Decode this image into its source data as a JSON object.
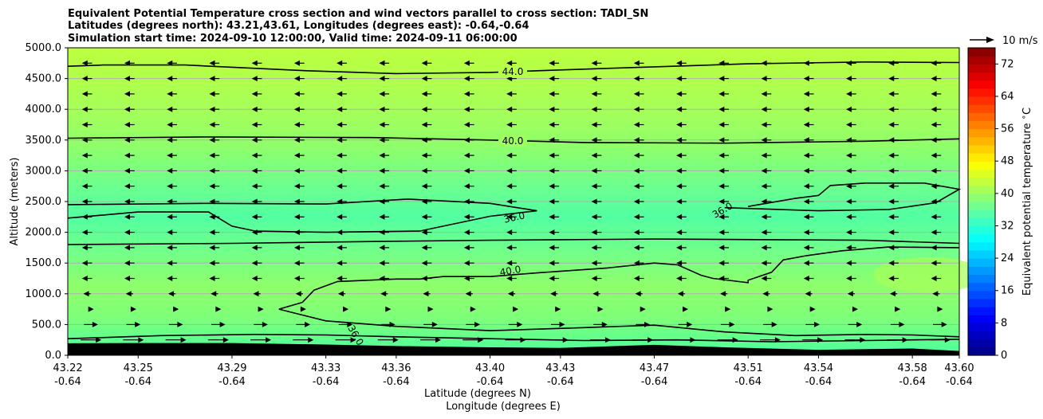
{
  "chart_data": {
    "type": "heatmap",
    "title_lines": [
      "Equivalent Potential Temperature cross section and wind vectors parallel to cross section: TADI_SN",
      "Latitudes (degrees north): 43.21,43.61, Longitudes (degrees east): -0.64,-0.64",
      "Simulation start time: 2024-09-10 12:00:00, Valid time: 2024-09-11 06:00:00"
    ],
    "ylabel": "Altitude (meters)",
    "xlabel_line1": "Latitude (degrees N)",
    "xlabel_line2": "Longitude (degrees E)",
    "ylim": [
      0,
      5000
    ],
    "xlim": [
      43.22,
      43.6
    ],
    "yticks": [
      "0.0",
      "500.0",
      "1000.0",
      "1500.0",
      "2000.0",
      "2500.0",
      "3000.0",
      "3500.0",
      "4000.0",
      "4500.0",
      "5000.0"
    ],
    "xticks": [
      {
        "lat": "43.22",
        "lon": "-0.64"
      },
      {
        "lat": "43.25",
        "lon": "-0.64"
      },
      {
        "lat": "43.29",
        "lon": "-0.64"
      },
      {
        "lat": "43.33",
        "lon": "-0.64"
      },
      {
        "lat": "43.36",
        "lon": "-0.64"
      },
      {
        "lat": "43.40",
        "lon": "-0.64"
      },
      {
        "lat": "43.43",
        "lon": "-0.64"
      },
      {
        "lat": "43.47",
        "lon": "-0.64"
      },
      {
        "lat": "43.51",
        "lon": "-0.64"
      },
      {
        "lat": "43.54",
        "lon": "-0.64"
      },
      {
        "lat": "43.58",
        "lon": "-0.64"
      },
      {
        "lat": "43.60",
        "lon": "-0.64"
      }
    ],
    "grid": "horizontal",
    "colorbar": {
      "label": "Equivalent potential temperature $^\\circ$C",
      "min": 0,
      "max": 76,
      "ticks": [
        "0",
        "8",
        "16",
        "24",
        "32",
        "40",
        "48",
        "56",
        "64",
        "72"
      ]
    },
    "quiver_key": "10 m/s",
    "contours": [
      {
        "level": "44.0",
        "points": [
          [
            43.22,
            4700
          ],
          [
            43.235,
            4720
          ],
          [
            43.27,
            4720
          ],
          [
            43.32,
            4630
          ],
          [
            43.36,
            4580
          ],
          [
            43.4,
            4600
          ],
          [
            43.43,
            4640
          ],
          [
            43.47,
            4690
          ],
          [
            43.51,
            4740
          ],
          [
            43.56,
            4770
          ],
          [
            43.6,
            4760
          ]
        ]
      },
      {
        "level": "40.0",
        "points": [
          [
            43.22,
            3530
          ],
          [
            43.28,
            3550
          ],
          [
            43.35,
            3540
          ],
          [
            43.4,
            3500
          ],
          [
            43.44,
            3460
          ],
          [
            43.5,
            3450
          ],
          [
            43.56,
            3480
          ],
          [
            43.6,
            3520
          ]
        ]
      },
      {
        "level": "36.0",
        "points": [
          [
            43.22,
            2450
          ],
          [
            43.28,
            2470
          ],
          [
            43.33,
            2460
          ],
          [
            43.365,
            2540
          ],
          [
            43.4,
            2470
          ],
          [
            43.42,
            2350
          ],
          [
            43.4,
            2260
          ],
          [
            43.37,
            2020
          ],
          [
            43.33,
            2000
          ],
          [
            43.3,
            2020
          ],
          [
            43.29,
            2100
          ],
          [
            43.28,
            2330
          ],
          [
            43.25,
            2330
          ],
          [
            43.22,
            2230
          ]
        ]
      },
      {
        "level": "36.0",
        "points": [
          [
            43.5,
            2400
          ],
          [
            43.54,
            2350
          ],
          [
            43.57,
            2370
          ],
          [
            43.59,
            2480
          ],
          [
            43.6,
            2700
          ],
          [
            43.585,
            2800
          ],
          [
            43.56,
            2800
          ],
          [
            43.545,
            2760
          ],
          [
            43.54,
            2600
          ],
          [
            43.53,
            2550
          ],
          [
            43.51,
            2420
          ]
        ]
      },
      {
        "level": "40.0",
        "points": [
          [
            43.22,
            1800
          ],
          [
            43.29,
            1820
          ],
          [
            43.35,
            1850
          ],
          [
            43.4,
            1870
          ],
          [
            43.43,
            1880
          ],
          [
            43.47,
            1890
          ],
          [
            43.52,
            1880
          ],
          [
            43.56,
            1870
          ],
          [
            43.6,
            1820
          ]
        ]
      },
      {
        "level": "40.0",
        "points": [
          [
            43.31,
            750
          ],
          [
            43.32,
            860
          ],
          [
            43.325,
            1060
          ],
          [
            43.335,
            1200
          ],
          [
            43.36,
            1240
          ],
          [
            43.37,
            1240
          ],
          [
            43.38,
            1280
          ],
          [
            43.4,
            1280
          ],
          [
            43.42,
            1340
          ],
          [
            43.45,
            1420
          ],
          [
            43.47,
            1500
          ],
          [
            43.48,
            1470
          ],
          [
            43.49,
            1300
          ],
          [
            43.495,
            1250
          ],
          [
            43.51,
            1180
          ],
          [
            43.51,
            1220
          ],
          [
            43.52,
            1350
          ],
          [
            43.525,
            1550
          ],
          [
            43.535,
            1620
          ],
          [
            43.55,
            1700
          ],
          [
            43.57,
            1760
          ],
          [
            43.6,
            1750
          ]
        ]
      },
      {
        "level": "36.0",
        "points": [
          [
            43.22,
            270
          ],
          [
            43.26,
            320
          ],
          [
            43.3,
            340
          ],
          [
            43.33,
            330
          ],
          [
            43.36,
            300
          ],
          [
            43.4,
            270
          ],
          [
            43.44,
            240
          ],
          [
            43.48,
            250
          ],
          [
            43.52,
            220
          ],
          [
            43.56,
            240
          ],
          [
            43.6,
            260
          ]
        ]
      },
      {
        "level": "36.0",
        "points": [
          [
            43.31,
            750
          ],
          [
            43.33,
            560
          ],
          [
            43.36,
            470
          ],
          [
            43.4,
            400
          ],
          [
            43.44,
            450
          ],
          [
            43.47,
            490
          ],
          [
            43.5,
            380
          ],
          [
            43.53,
            320
          ],
          [
            43.56,
            340
          ],
          [
            43.58,
            330
          ],
          [
            43.6,
            300
          ]
        ]
      }
    ],
    "terrain_height_m": [
      [
        43.22,
        195
      ],
      [
        43.25,
        200
      ],
      [
        43.29,
        200
      ],
      [
        43.33,
        175
      ],
      [
        43.36,
        150
      ],
      [
        43.4,
        130
      ],
      [
        43.43,
        120
      ],
      [
        43.47,
        170
      ],
      [
        43.5,
        130
      ],
      [
        43.54,
        90
      ],
      [
        43.58,
        110
      ],
      [
        43.6,
        70
      ]
    ]
  }
}
